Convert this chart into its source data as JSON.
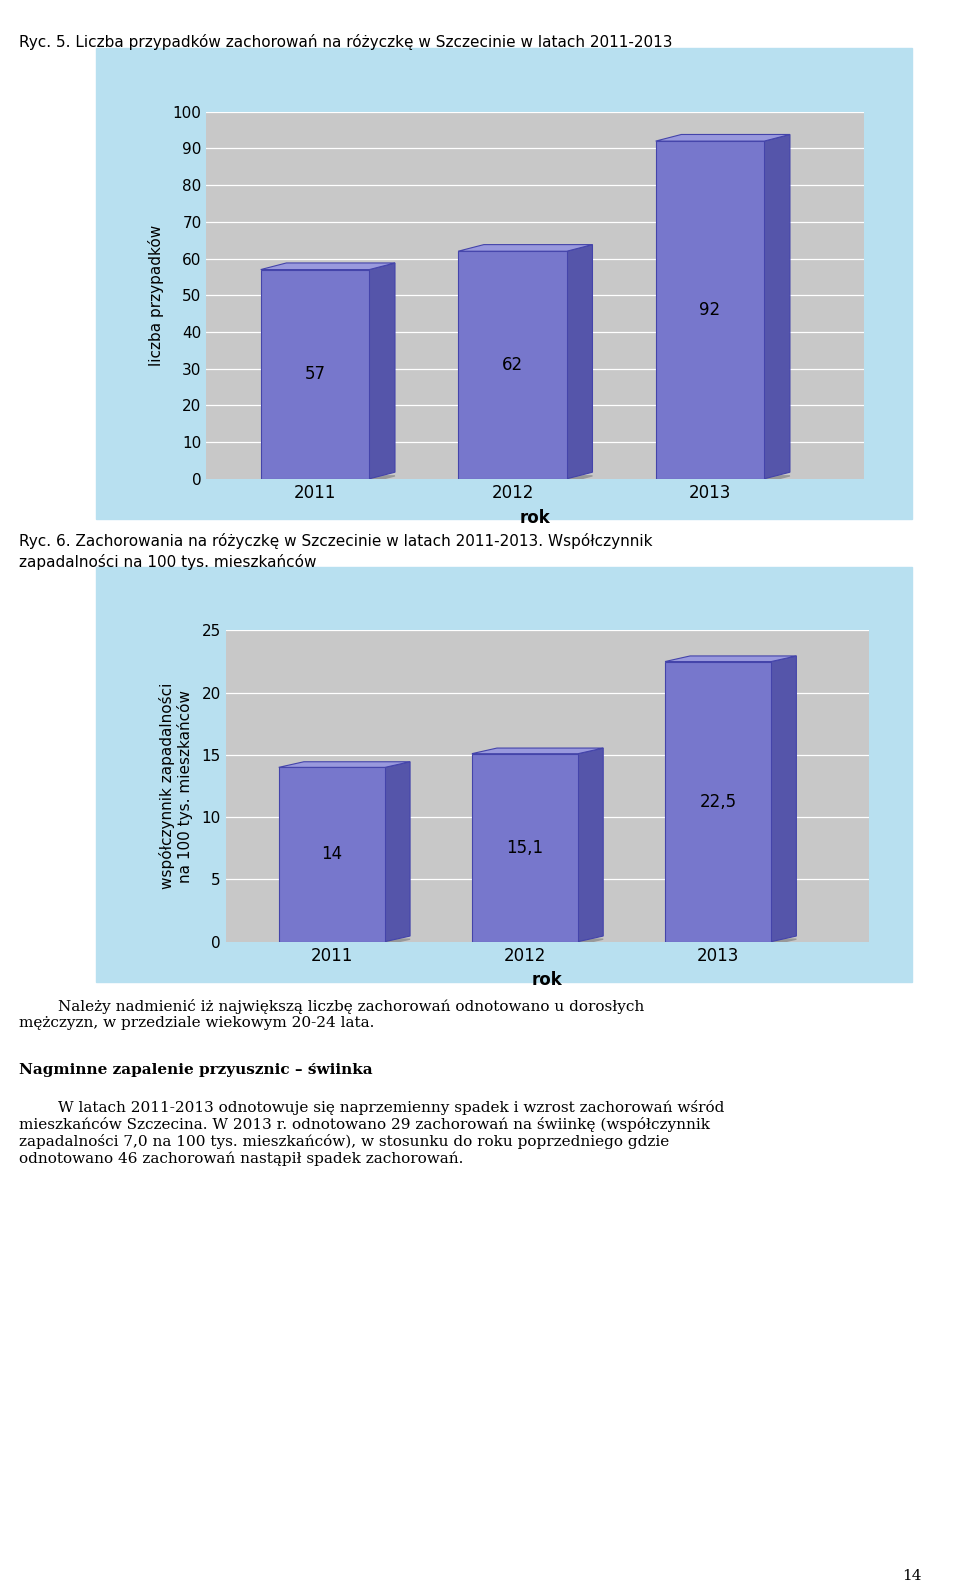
{
  "fig_title1": "Ryc. 5. Liczba przypadków zachorowań na różyczkę w Szczecinie w latach 2011-2013",
  "fig_title2_line1": "Ryc. 6. Zachorowania na różyczkę w Szczecinie w latach 2011-2013. Współczynnik",
  "fig_title2_line2": "zapadalności na 100 tys. mieszkańców",
  "chart1": {
    "years": [
      "2011",
      "2012",
      "2013"
    ],
    "values": [
      57,
      62,
      92
    ],
    "labels": [
      "57",
      "62",
      "92"
    ],
    "ylabel": "liczba przypadków",
    "xlabel": "rok",
    "ylim": [
      0,
      100
    ],
    "yticks": [
      0,
      10,
      20,
      30,
      40,
      50,
      60,
      70,
      80,
      90,
      100
    ],
    "bar_color": "#7777CC",
    "bar_top_color": "#9999DD",
    "bar_side_color": "#5555AA",
    "bar_edge_color": "#4444AA",
    "bg_color": "#B8E0F0",
    "plot_bg_color": "#C8C8C8"
  },
  "chart2": {
    "years": [
      "2011",
      "2012",
      "2013"
    ],
    "values": [
      14,
      15.1,
      22.5
    ],
    "labels": [
      "14",
      "15,1",
      "22,5"
    ],
    "ylabel": "współczynnik zapadalności\nna 100 tys. mieszkańców",
    "xlabel": "rok",
    "ylim": [
      0,
      25
    ],
    "yticks": [
      0,
      5,
      10,
      15,
      20,
      25
    ],
    "bar_color": "#7777CC",
    "bar_top_color": "#9999DD",
    "bar_side_color": "#5555AA",
    "bar_edge_color": "#4444AA",
    "bg_color": "#B8E0F0",
    "plot_bg_color": "#C8C8C8"
  },
  "text_para1": "        Należy nadmienić iż największą liczbę zachorowań odnotowano u dorosłych mężczyzn, w przedziale wiekowym 20-24 lata.",
  "text_section_title": "Nagminne zapalenie przyusznic – świinka",
  "text_para2": "        W latach 2011-2013 odnotowuje się naprzemienny spadek i wzrost zachorowań wśród mieszkańców Szczecina. W 2013 r. odnotowano 29 zachorowań na świinkę (współczynnik zapadalności 7,0 na 100 tys. mieszkańców), w stosunku do roku poprzedniego gdzie odnotowano 46 zachorowań nastąpił spadek zachorowań.",
  "page_number": "14",
  "bg_page": "#FFFFFF",
  "font_size_body": 11,
  "font_size_title": 11
}
